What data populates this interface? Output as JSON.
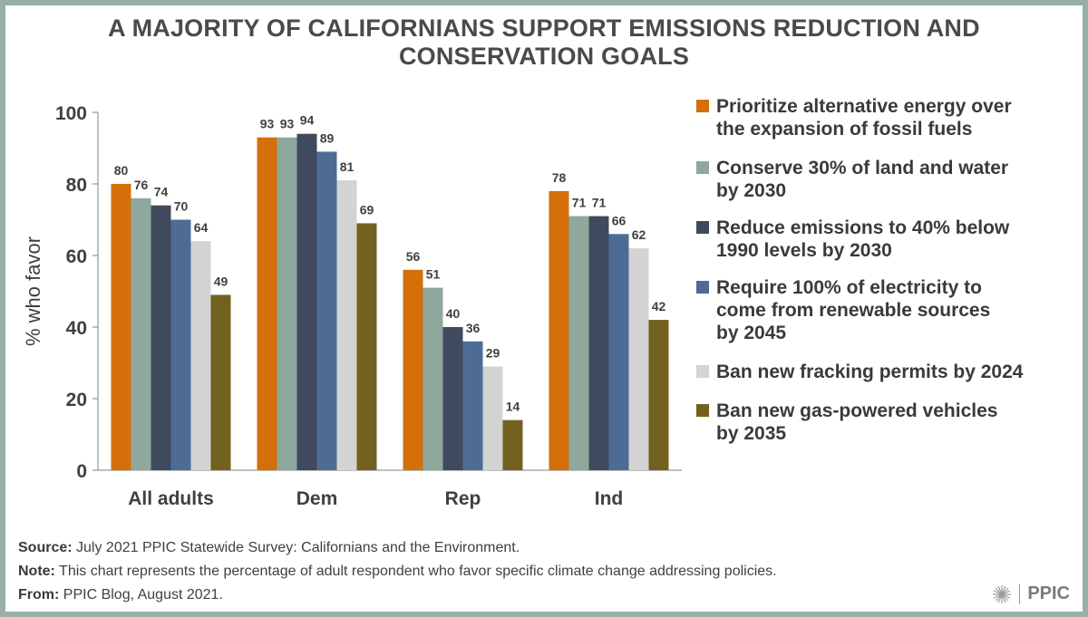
{
  "chart_data": {
    "type": "bar",
    "title": "A MAJORITY OF CALIFORNIANS SUPPORT EMISSIONS REDUCTION AND CONSERVATION GOALS",
    "xlabel": "",
    "ylabel": "% who favor",
    "ylim": [
      0,
      100
    ],
    "yticks": [
      0,
      20,
      40,
      60,
      80,
      100
    ],
    "categories": [
      "All adults",
      "Dem",
      "Rep",
      "Ind"
    ],
    "legend_position": "right",
    "series": [
      {
        "name": "Prioritize alternative energy over the expansion of fossil fuels",
        "color": "#d46f0a",
        "values": [
          80,
          93,
          56,
          78
        ]
      },
      {
        "name": "Conserve 30% of land and water by 2030",
        "color": "#8fa89e",
        "values": [
          76,
          93,
          51,
          71
        ]
      },
      {
        "name": "Reduce emissions to 40% below 1990 levels by 2030",
        "color": "#404a5e",
        "values": [
          74,
          94,
          40,
          71
        ]
      },
      {
        "name": "Require 100% of electricity to come from renewable sources by 2045",
        "color": "#4e6b96",
        "values": [
          70,
          89,
          36,
          66
        ]
      },
      {
        "name": "Ban new fracking permits by 2024",
        "color": "#d3d3d3",
        "values": [
          64,
          81,
          29,
          62
        ]
      },
      {
        "name": "Ban new gas-powered vehicles by 2035",
        "color": "#73611f",
        "values": [
          49,
          69,
          14,
          42
        ]
      }
    ]
  },
  "legend_lines": [
    [
      "Prioritize alternative energy over",
      "the expansion of fossil fuels"
    ],
    [
      "Conserve 30% of land and water",
      "by 2030"
    ],
    [
      "Reduce emissions to 40% below",
      "1990 levels by 2030"
    ],
    [
      "Require 100% of electricity to",
      "come from renewable sources",
      "by 2045"
    ],
    [
      "Ban new fracking permits by 2024"
    ],
    [
      "Ban new gas-powered vehicles",
      "by 2035"
    ]
  ],
  "notes": {
    "source_label": "Source:",
    "source_text": " July 2021 PPIC Statewide Survey: Californians and the Environment.",
    "note_label": "Note:",
    "note_text": " This chart represents the percentage of adult respondent who favor specific climate change addressing policies.",
    "from_label": "From:",
    "from_text": " PPIC Blog, August 2021."
  },
  "logo": {
    "text": "PPIC"
  }
}
